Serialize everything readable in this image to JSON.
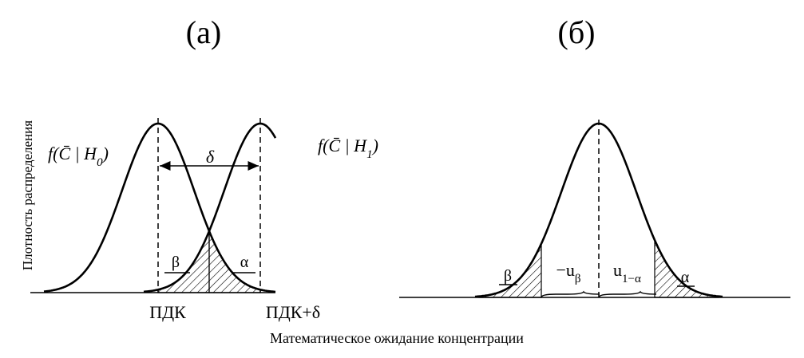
{
  "panel_a": {
    "title": "(а)",
    "left_curve_label": {
      "text": "f(C̄ | H",
      "subscript": "0",
      "close": ")"
    },
    "right_curve_label": {
      "text": "f(C̄ | H",
      "subscript": "1",
      "close": ")"
    },
    "shift_label": "δ",
    "beta_label": "β",
    "alpha_label": "α",
    "left_tick": "ПДК",
    "right_tick": "ПДК+δ"
  },
  "panel_b": {
    "title": "(б)",
    "left_bound": {
      "text": "−u",
      "subscript": "β"
    },
    "right_bound": {
      "text": "u",
      "subscript": "1−α"
    },
    "beta_label": "β",
    "alpha_label": "α"
  },
  "y_axis_label": "Плотность распределения",
  "x_axis_label": "Математическое ожидание концентрации"
}
